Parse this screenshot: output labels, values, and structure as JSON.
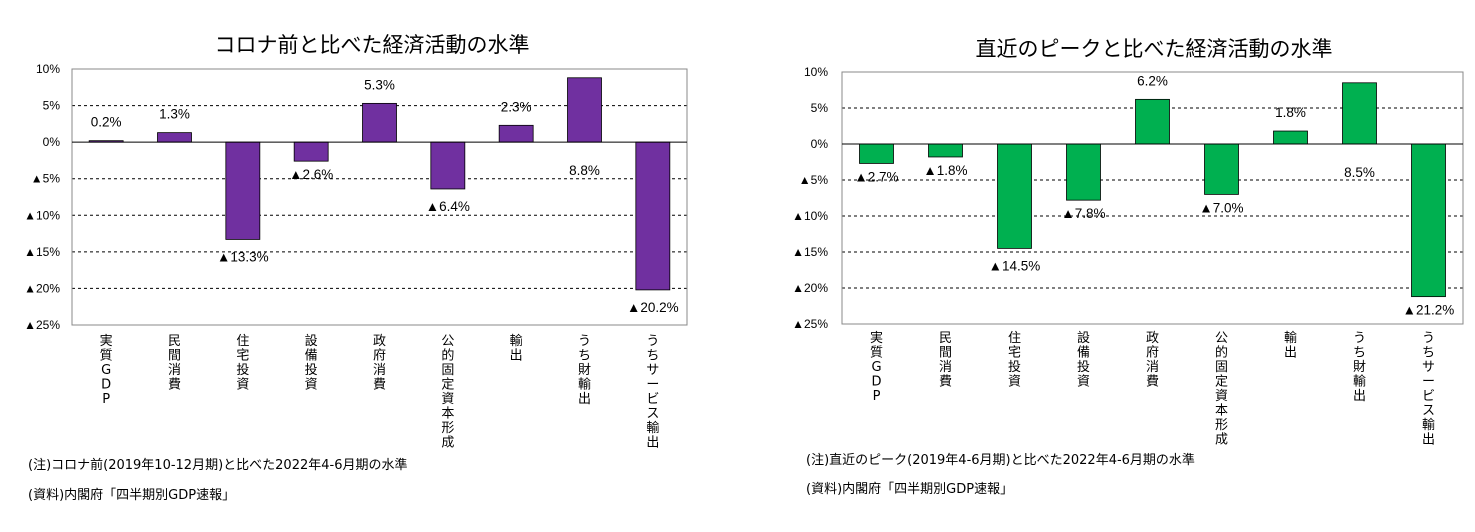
{
  "chart_data": [
    {
      "type": "bar",
      "title": "コロナ前と比べた経済活動の水準",
      "categories": [
        "実質GDP",
        "民間消費",
        "住宅投資",
        "設備投資",
        "政府消費",
        "公的固定資本形成",
        "輸出",
        "うち財輸出",
        "うちサービス輸出"
      ],
      "values": [
        0.2,
        1.3,
        -13.3,
        -2.6,
        5.3,
        -6.4,
        2.3,
        8.8,
        -20.2
      ],
      "value_labels": [
        "0.2%",
        "1.3%",
        "▲13.3%",
        "▲2.6%",
        "5.3%",
        "▲6.4%",
        "2.3%",
        "8.8%",
        "▲20.2%"
      ],
      "ylim": [
        -25,
        10
      ],
      "yticks": [
        10,
        5,
        0,
        -5,
        -10,
        -15,
        -20,
        -25
      ],
      "ytick_labels": [
        "10%",
        "5%",
        "0%",
        "▲5%",
        "▲10%",
        "▲15%",
        "▲20%",
        "▲25%"
      ],
      "grid": "horizontal-dashed",
      "bar_color": "#7030A0",
      "note": "(注)コロナ前(2019年10-12月期)と比べた2022年4-6月期の水準",
      "source": "(資料)内閣府「四半期別GDP速報」"
    },
    {
      "type": "bar",
      "title": "直近のピークと比べた経済活動の水準",
      "categories": [
        "実質GDP",
        "民間消費",
        "住宅投資",
        "設備投資",
        "政府消費",
        "公的固定資本形成",
        "輸出",
        "うち財輸出",
        "うちサービス輸出"
      ],
      "values": [
        -2.7,
        -1.8,
        -14.5,
        -7.8,
        6.2,
        -7.0,
        1.8,
        8.5,
        -21.2
      ],
      "value_labels": [
        "▲2.7%",
        "▲1.8%",
        "▲14.5%",
        "▲7.8%",
        "6.2%",
        "▲7.0%",
        "1.8%",
        "8.5%",
        "▲21.2%"
      ],
      "ylim": [
        -25,
        10
      ],
      "yticks": [
        10,
        5,
        0,
        -5,
        -10,
        -15,
        -20,
        -25
      ],
      "ytick_labels": [
        "10%",
        "5%",
        "0%",
        "▲5%",
        "▲10%",
        "▲15%",
        "▲20%",
        "▲25%"
      ],
      "grid": "horizontal-dashed",
      "bar_color": "#00B050",
      "note": "(注)直近のピーク(2019年4-6月期)と比べた2022年4-6月期の水準",
      "source": "(資料)内閣府「四半期別GDP速報」"
    }
  ]
}
